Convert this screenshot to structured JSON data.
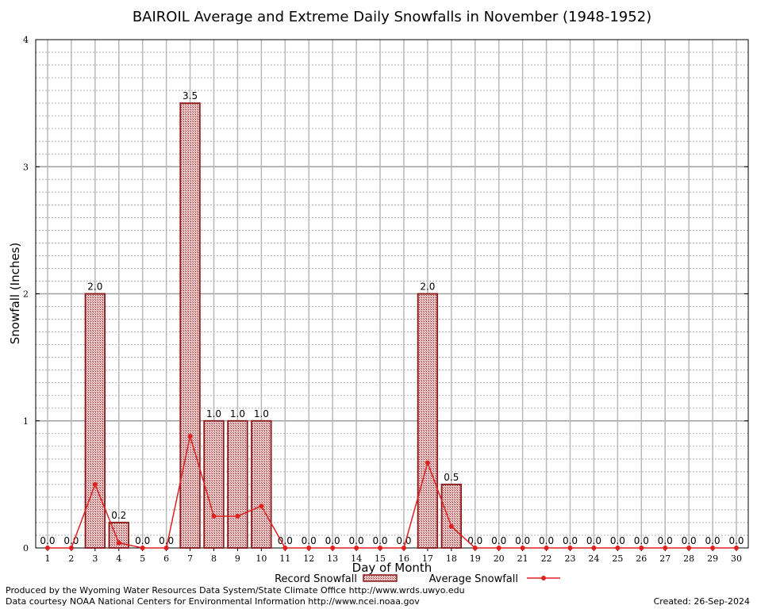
{
  "chart_data": {
    "type": "bar",
    "title": "BAIROIL Average and Extreme Daily Snowfalls in November (1948-1952)",
    "xlabel": "Day of Month",
    "ylabel": "Snowfall (Inches)",
    "ylim": [
      0,
      4
    ],
    "yticks": [
      "0",
      "1",
      "2",
      "3",
      "4"
    ],
    "grid": true,
    "categories": [
      "1",
      "2",
      "3",
      "4",
      "5",
      "6",
      "7",
      "8",
      "9",
      "10",
      "11",
      "12",
      "13",
      "14",
      "15",
      "16",
      "17",
      "18",
      "19",
      "20",
      "21",
      "22",
      "23",
      "24",
      "25",
      "26",
      "27",
      "28",
      "29",
      "30"
    ],
    "series": [
      {
        "name": "Record Snowfall",
        "kind": "bar",
        "values": [
          0.0,
          0.0,
          2.0,
          0.2,
          0.0,
          0.0,
          3.5,
          1.0,
          1.0,
          1.0,
          0.0,
          0.0,
          0.0,
          0.0,
          0.0,
          0.0,
          2.0,
          0.5,
          0.0,
          0.0,
          0.0,
          0.0,
          0.0,
          0.0,
          0.0,
          0.0,
          0.0,
          0.0,
          0.0,
          0.0
        ],
        "labels": [
          "0.0",
          "0.0",
          "2.0",
          "0.2",
          "0.0",
          "0.0",
          "3.5",
          "1.0",
          "1.0",
          "1.0",
          "0.0",
          "0.0",
          "0.0",
          "0.0",
          "0.0",
          "0.0",
          "2.0",
          "0.5",
          "0.0",
          "0.0",
          "0.0",
          "0.0",
          "0.0",
          "0.0",
          "0.0",
          "0.0",
          "0.0",
          "0.0",
          "0.0",
          "0.0"
        ],
        "color": "#8b1a1a"
      },
      {
        "name": "Average Snowfall",
        "kind": "line",
        "values": [
          0.0,
          0.0,
          0.5,
          0.04,
          0.0,
          0.0,
          0.88,
          0.25,
          0.25,
          0.33,
          0.0,
          0.0,
          0.0,
          0.0,
          0.0,
          0.0,
          0.67,
          0.17,
          0.0,
          0.0,
          0.0,
          0.0,
          0.0,
          0.0,
          0.0,
          0.0,
          0.0,
          0.0,
          0.0,
          0.0
        ],
        "color": "#e02020"
      }
    ],
    "legend": {
      "placement": "bottom-center"
    }
  },
  "footer": {
    "line1": "Produced by the Wyoming Water Resources Data System/State Climate Office http://www.wrds.uwyo.edu",
    "line2": "Data courtesy NOAA National Centers for Environmental Information http://www.ncei.noaa.gov",
    "created": "Created:  26-Sep-2024"
  }
}
